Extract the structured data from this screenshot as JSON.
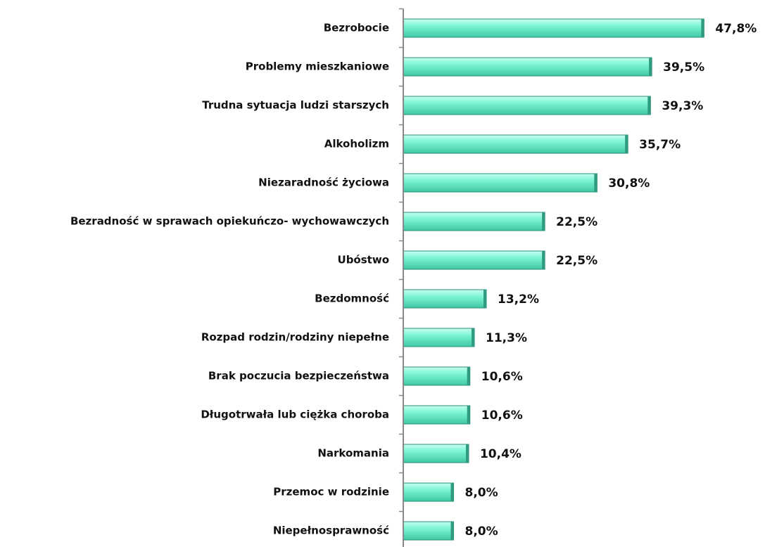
{
  "chart_data": {
    "type": "hbar",
    "categories": [
      "Bezrobocie",
      "Problemy mieszkaniowe",
      "Trudna sytuacja ludzi starszych",
      "Alkoholizm",
      "Niezaradność życiowa",
      "Bezradność w sprawach opiekuńczo- wychowawczych",
      "Ubóstwo",
      "Bezdomność",
      "Rozpad rodzin/rodziny niepełne",
      "Brak poczucia bezpieczeństwa",
      "Długotrwała lub ciężka choroba",
      "Narkomania",
      "Przemoc w rodzinie",
      "Niepełnosprawność"
    ],
    "values": [
      47.8,
      39.5,
      39.3,
      35.7,
      30.8,
      22.5,
      22.5,
      13.2,
      11.3,
      10.6,
      10.6,
      10.4,
      8.0,
      8.0
    ],
    "value_labels": [
      "47,8%",
      "39,5%",
      "39,3%",
      "35,7%",
      "30,8%",
      "22,5%",
      "22,5%",
      "13,2%",
      "11,3%",
      "10,6%",
      "10,6%",
      "10,4%",
      "8,0%",
      "8,0%"
    ],
    "color": "#66f0cc",
    "xlim": [
      0,
      50
    ]
  }
}
